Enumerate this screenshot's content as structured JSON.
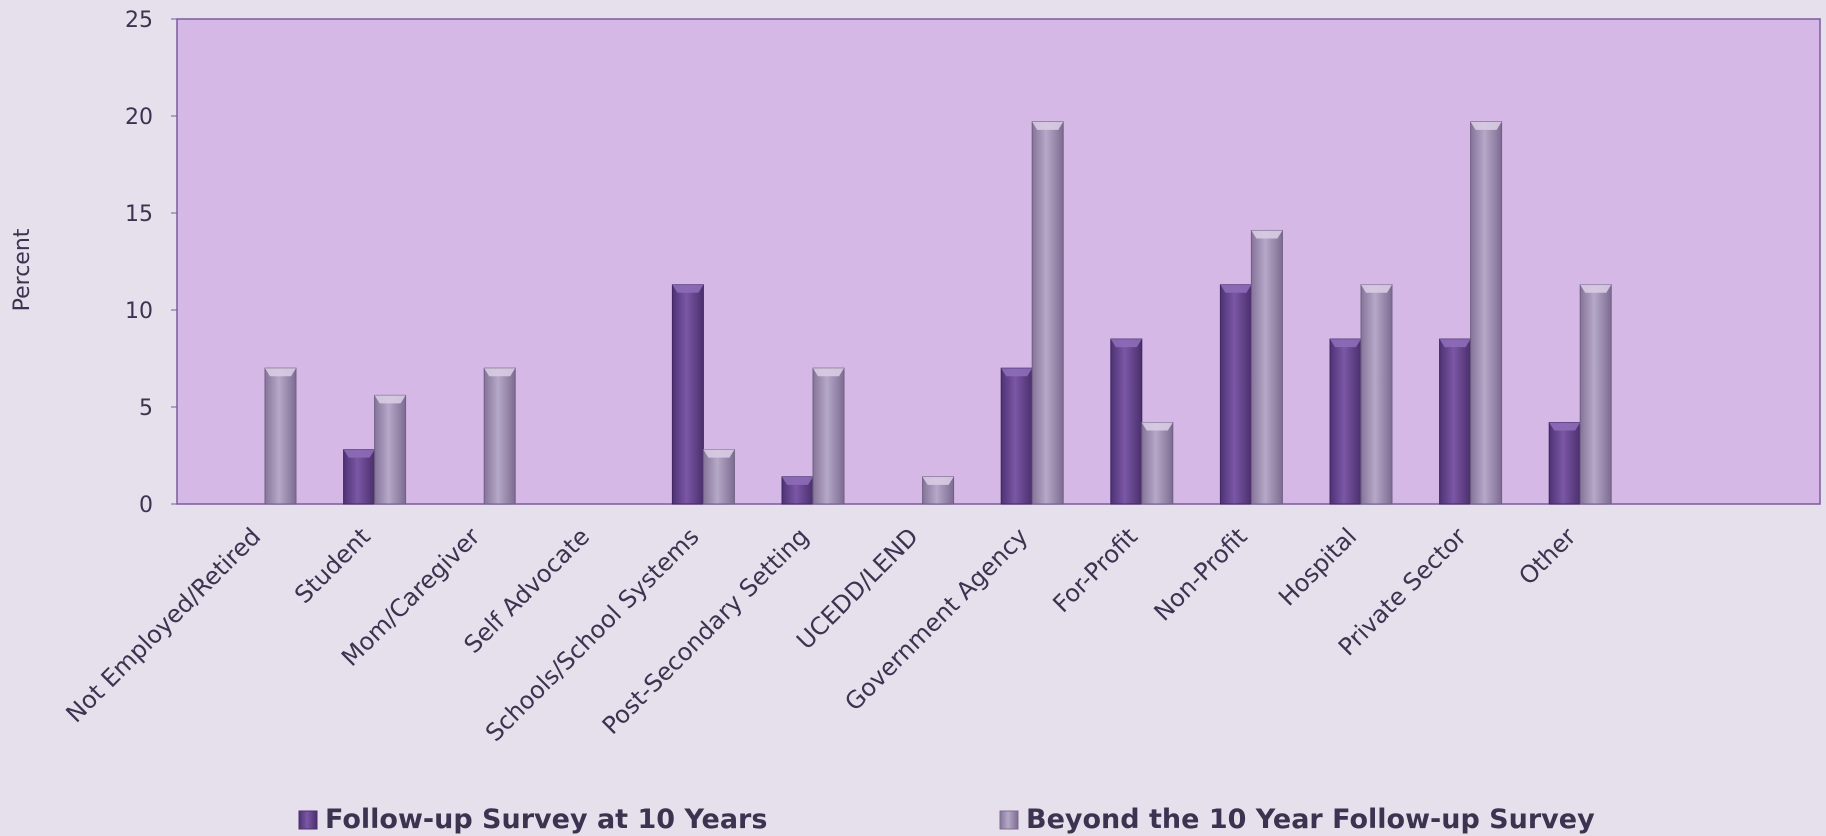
{
  "chart_data": {
    "type": "bar",
    "categories": [
      "Not Employed/Retired",
      "Student",
      "Mom/Caregiver",
      "Self Advocate",
      "Schools/School Systems",
      "Post-Secondary Setting",
      "UCEDD/LEND",
      "Government Agency",
      "For-Profit",
      "Non-Profit",
      "Hospital",
      "Private Sector",
      "Other"
    ],
    "series": [
      {
        "name": "Follow-up Survey at 10 Years",
        "values": [
          0,
          2.8,
          0,
          0,
          11.3,
          1.4,
          0,
          7.0,
          8.5,
          11.3,
          8.5,
          8.5,
          4.2
        ]
      },
      {
        "name": "Beyond the 10 Year Follow-up Survey",
        "values": [
          7.0,
          5.6,
          7.0,
          0,
          2.8,
          7.0,
          1.4,
          19.7,
          4.2,
          14.1,
          11.3,
          19.7,
          11.3
        ]
      }
    ],
    "ylabel": "Percent",
    "xlabel": "",
    "ylim": [
      0,
      25
    ],
    "yticks": [
      "0",
      "5",
      "10",
      "15",
      "20",
      "25"
    ],
    "grid": false,
    "legend_position": "bottom",
    "colors": {
      "plot_background": "#d6b8e6",
      "page_background": "#e6e0ec",
      "series_1": "#6b4a96",
      "series_2": "#a393b8",
      "axis": "#7a5aa0"
    }
  }
}
